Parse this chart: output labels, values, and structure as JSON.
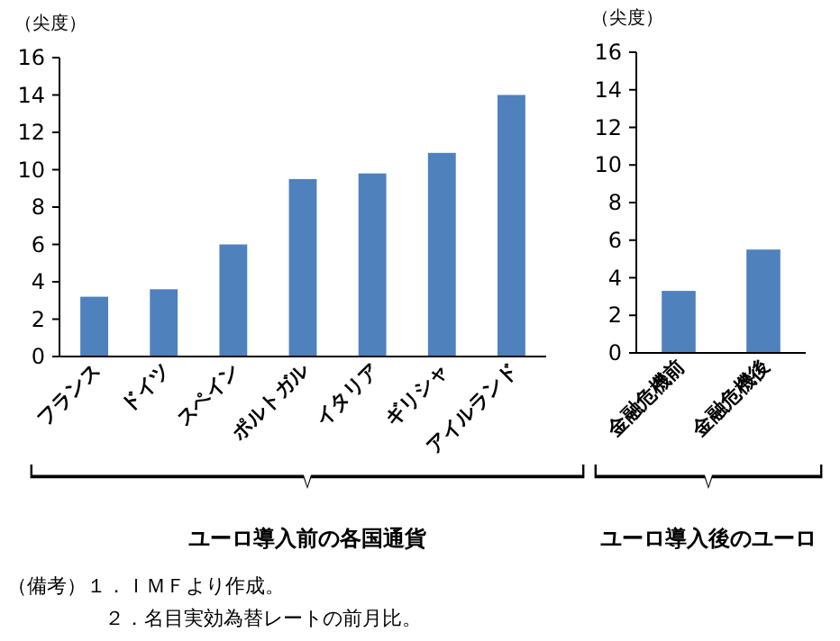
{
  "chart_data": [
    {
      "type": "bar",
      "ylabel": "（尖度）",
      "xlabel": "ユーロ導入前の各国通貨",
      "categories": [
        "フランス",
        "ドイツ",
        "スペイン",
        "ポルトガル",
        "イタリア",
        "ギリシャ",
        "アイルランド"
      ],
      "values": [
        3.2,
        3.6,
        6.0,
        9.5,
        9.8,
        10.9,
        14.0
      ],
      "color": "#4f81bd",
      "ylim": [
        0,
        16
      ],
      "yticks": [
        0,
        2,
        4,
        6,
        8,
        10,
        12,
        14,
        16
      ],
      "annotations": [
        "（備考）１．ＩＭＦより作成。",
        "２．名目実効為替レートの前月比。"
      ]
    },
    {
      "type": "bar",
      "ylabel": "（尖度）",
      "xlabel": "ユーロ導入後のユーロ",
      "categories": [
        "金融危機前",
        "金融危機後"
      ],
      "values": [
        3.3,
        5.5
      ],
      "color": "#4f81bd",
      "ylim": [
        0,
        16
      ],
      "yticks": [
        0,
        2,
        4,
        6,
        8,
        10,
        12,
        14,
        16
      ]
    }
  ]
}
